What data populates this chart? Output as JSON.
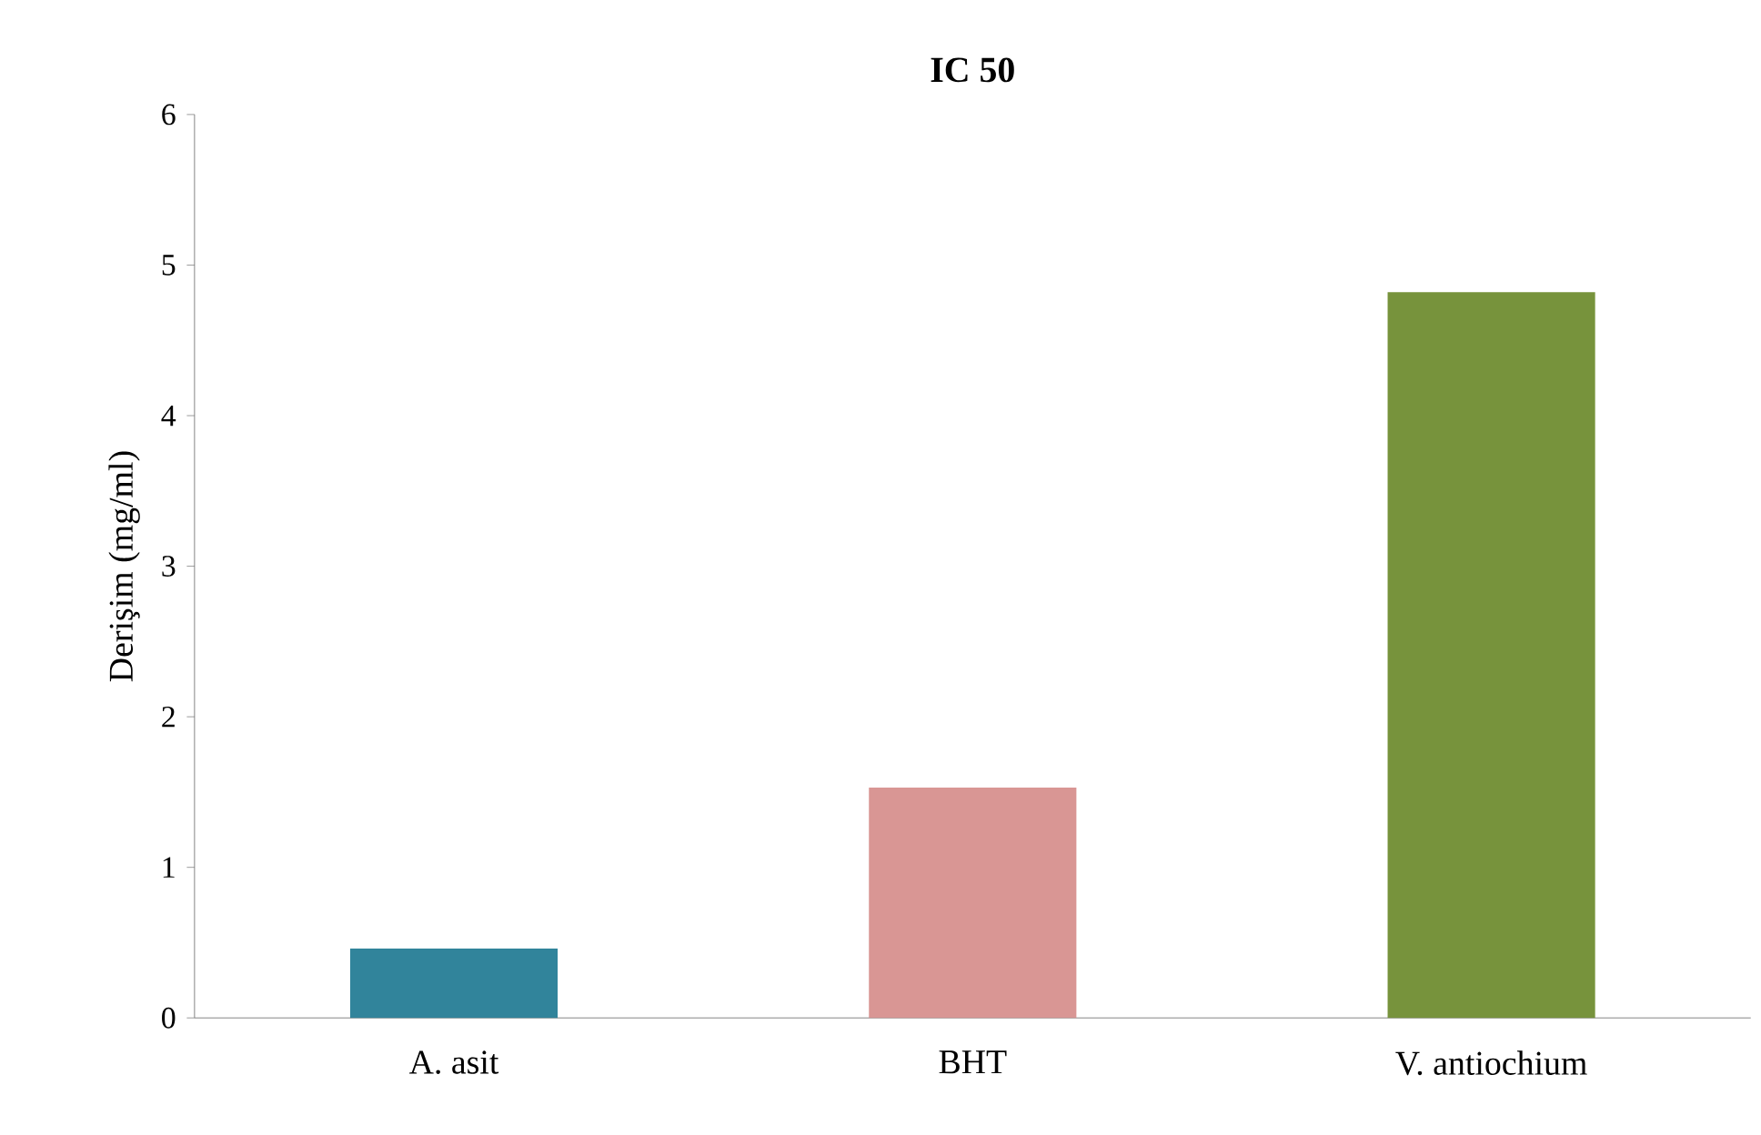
{
  "chart_data": {
    "type": "bar",
    "title": "IC 50",
    "ylabel": "Derişim (mg/ml)",
    "categories": [
      "A. asit",
      "BHT",
      "V. antiochium"
    ],
    "values": [
      0.46,
      1.53,
      4.82
    ],
    "colors": [
      "#31849b",
      "#d99694",
      "#77933c"
    ],
    "ylim": [
      0,
      6
    ],
    "yticks": [
      0,
      1,
      2,
      3,
      4,
      5,
      6
    ]
  }
}
